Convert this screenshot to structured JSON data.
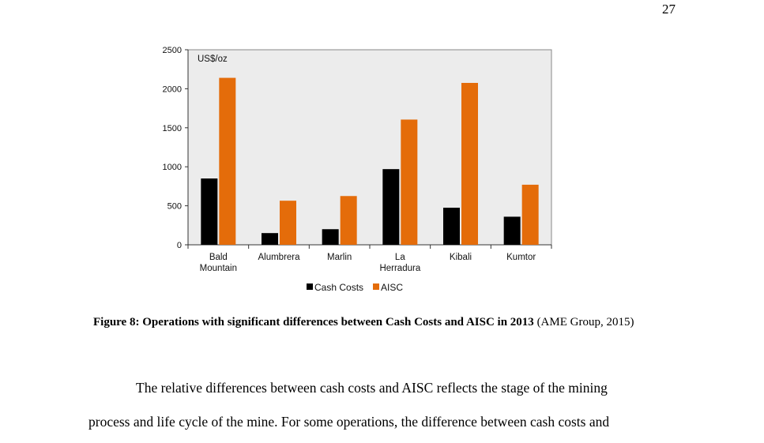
{
  "page": {
    "number": "27"
  },
  "chart_data": {
    "type": "bar",
    "unit_label": "US$/oz",
    "categories": [
      [
        "Bald",
        "Mountain"
      ],
      [
        "Alumbrera"
      ],
      [
        "Marlin"
      ],
      [
        "La",
        "Herradura"
      ],
      [
        "Kibali"
      ],
      [
        "Kumtor"
      ]
    ],
    "series": [
      {
        "name": "Cash Costs",
        "color": "#000000",
        "values": [
          850,
          150,
          200,
          970,
          475,
          360
        ]
      },
      {
        "name": "AISC",
        "color": "#E46C0A",
        "values": [
          2140,
          565,
          625,
          1605,
          2075,
          770
        ]
      }
    ],
    "yticks": [
      "0",
      "500",
      "1000",
      "1500",
      "2000",
      "2500"
    ],
    "ylim": [
      0,
      2500
    ],
    "legend": [
      "Cash Costs",
      "AISC"
    ]
  },
  "caption": {
    "bold": "Figure 8: Operations with significant differences between Cash Costs and AISC in 2013",
    "normal": " (AME Group, 2015)"
  },
  "body": {
    "line1": "The relative differences between cash costs and AISC reflects the stage of the mining",
    "line2": "process and life cycle of the mine. For some operations, the difference between cash costs and"
  }
}
